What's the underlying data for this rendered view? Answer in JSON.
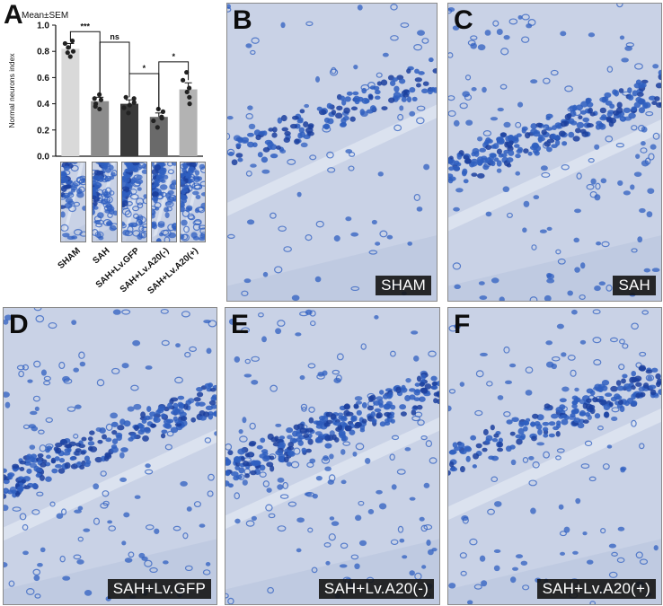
{
  "panels": {
    "A": {
      "letter": "A"
    },
    "B": {
      "letter": "B",
      "label": "SHAM"
    },
    "C": {
      "letter": "C",
      "label": "SAH"
    },
    "D": {
      "letter": "D",
      "label": "SAH+Lv.GFP"
    },
    "E": {
      "letter": "E",
      "label": "SAH+Lv.A20(-)"
    },
    "F": {
      "letter": "F",
      "label": "SAH+Lv.A20(+)"
    }
  },
  "colors": {
    "tissue": "#c9d2e6",
    "neuron": "#2f5fc0",
    "neuron_dark": "#1b3f9e",
    "bar_sham": "#d9d9d9",
    "bar_sah": "#8c8c8c",
    "bar_gfp": "#3a3a3a",
    "bar_a20neg": "#6a6a6a",
    "bar_a20pos": "#b3b3b3"
  },
  "chart_data": {
    "type": "bar",
    "legend_note": "Mean±SEM",
    "ylabel": "Normal neurons index",
    "ylim": [
      0.0,
      1.0
    ],
    "yticks": [
      "0.0",
      "0.2",
      "0.4",
      "0.6",
      "0.8",
      "1.0"
    ],
    "categories": [
      "SHAM",
      "SAH",
      "SAH+Lv.GFP",
      "SAH+Lv.A20(-)",
      "SAH+Lv.A20(+)"
    ],
    "values": [
      0.82,
      0.42,
      0.4,
      0.3,
      0.51
    ],
    "errors": [
      0.04,
      0.03,
      0.03,
      0.03,
      0.05
    ],
    "points": [
      [
        0.86,
        0.8,
        0.83,
        0.76,
        0.88,
        0.79
      ],
      [
        0.44,
        0.36,
        0.4,
        0.47,
        0.43,
        0.38
      ],
      [
        0.37,
        0.45,
        0.41,
        0.33,
        0.39,
        0.44
      ],
      [
        0.27,
        0.34,
        0.3,
        0.22,
        0.36,
        0.29
      ],
      [
        0.58,
        0.45,
        0.52,
        0.64,
        0.49,
        0.4
      ]
    ],
    "significance": [
      {
        "from": 0,
        "to": 1,
        "label": "***"
      },
      {
        "from": 1,
        "to": 2,
        "label": "ns"
      },
      {
        "from": 2,
        "to": 3,
        "label": "*"
      },
      {
        "from": 3,
        "to": 4,
        "label": "*"
      }
    ],
    "grid": false
  }
}
